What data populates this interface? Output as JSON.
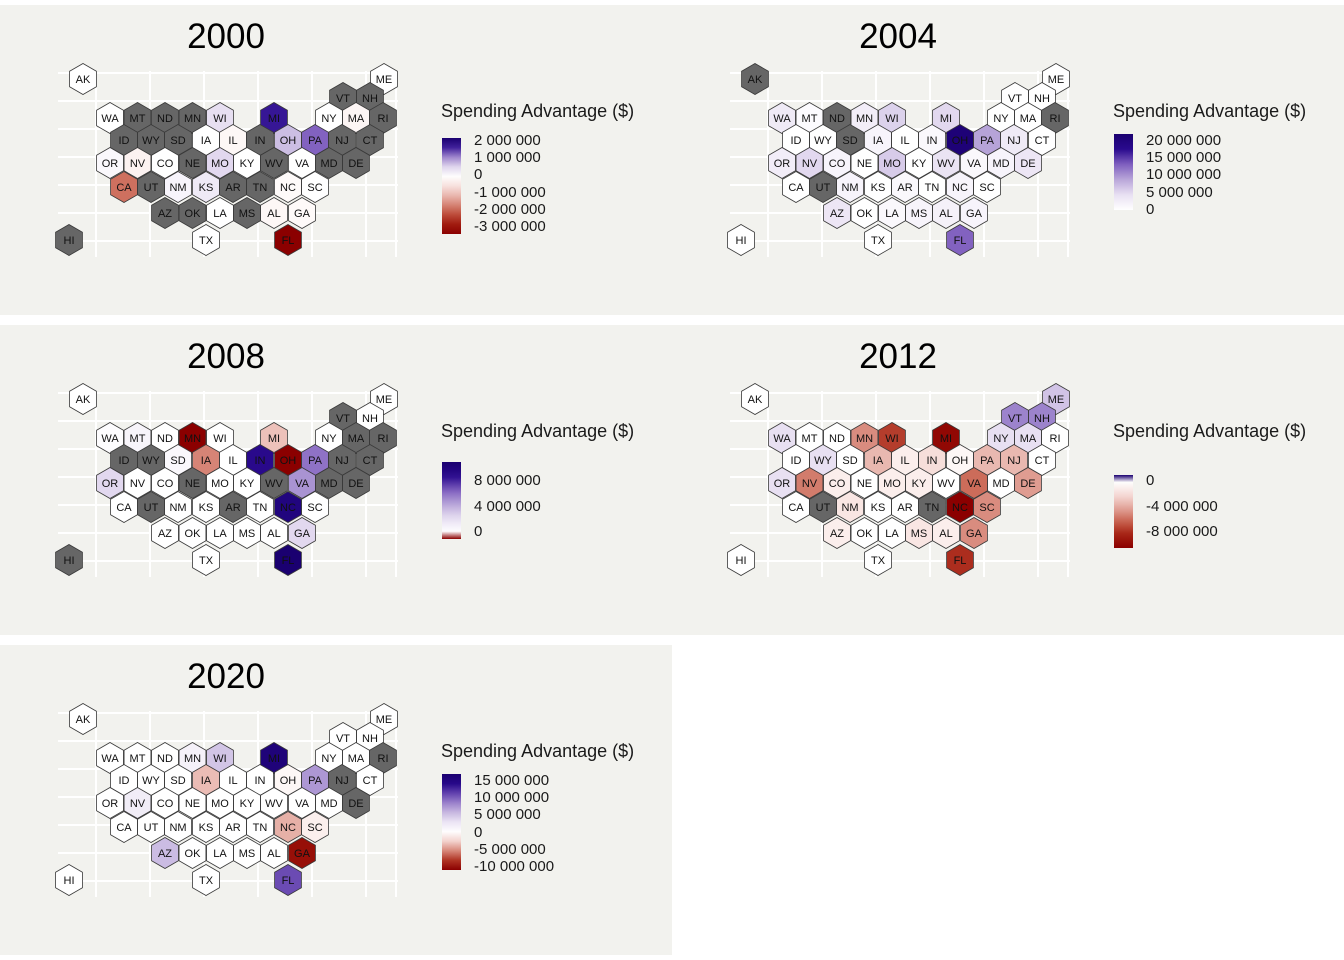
{
  "legend_title": "Spending Advantage ($)",
  "chart_data": [
    {
      "type": "heatmap",
      "title": "2000",
      "legend": {
        "title": "Spending Advantage ($)",
        "ticks": [
          {
            "value": 2000000,
            "label": "2 000 000"
          },
          {
            "value": 1000000,
            "label": "1 000 000"
          },
          {
            "value": 0,
            "label": "0"
          },
          {
            "value": -1000000,
            "label": "-1 000 000"
          },
          {
            "value": -2000000,
            "label": "-2 000 000"
          },
          {
            "value": -3000000,
            "label": "-3 000 000"
          }
        ],
        "range": [
          -3400000,
          2200000
        ]
      },
      "no_data_color": "#666666",
      "values": {
        "AK": 0,
        "ME": 0,
        "VT": null,
        "NH": null,
        "WA": 0,
        "MT": null,
        "ND": null,
        "MN": null,
        "WI": 450000,
        "MI": 1700000,
        "NY": 0,
        "MA": -200000,
        "RI": null,
        "ID": null,
        "WY": null,
        "SD": null,
        "IA": 0,
        "IL": -150000,
        "IN": null,
        "OH": 700000,
        "PA": 1300000,
        "NJ": null,
        "CT": null,
        "OR": 100000,
        "NV": -250000,
        "CO": 0,
        "NE": null,
        "MO": 500000,
        "KY": 0,
        "WV": null,
        "VA": 0,
        "MD": null,
        "DE": null,
        "CA": -1900000,
        "UT": null,
        "NM": 150000,
        "KS": 300000,
        "AR": null,
        "TN": null,
        "NC": -100000,
        "SC": 0,
        "AZ": null,
        "OK": null,
        "LA": 0,
        "MS": null,
        "AL": -150000,
        "GA": -100000,
        "HI": null,
        "TX": 0,
        "FL": -3400000
      }
    },
    {
      "type": "heatmap",
      "title": "2004",
      "legend": {
        "title": "Spending Advantage ($)",
        "ticks": [
          {
            "value": 20000000,
            "label": "20 000 000"
          },
          {
            "value": 15000000,
            "label": "15 000 000"
          },
          {
            "value": 10000000,
            "label": "10 000 000"
          },
          {
            "value": 5000000,
            "label": "5 000 000"
          },
          {
            "value": 0,
            "label": "0"
          }
        ],
        "range": [
          0,
          22000000
        ]
      },
      "no_data_color": "#666666",
      "values": {
        "AK": null,
        "ME": 0,
        "VT": 0,
        "NH": 0,
        "WA": 3000000,
        "MT": 500000,
        "ND": null,
        "MN": 2500000,
        "WI": 5500000,
        "MI": 5000000,
        "NY": 0,
        "MA": 0,
        "RI": null,
        "ID": 0,
        "WY": 0,
        "SD": null,
        "IA": 1500000,
        "IL": 0,
        "IN": 1000000,
        "OH": 21000000,
        "PA": 9000000,
        "NJ": 3000000,
        "CT": 0,
        "OR": 2500000,
        "NV": 5000000,
        "CO": 1500000,
        "NE": 0,
        "MO": 6000000,
        "KY": 0,
        "WV": 4000000,
        "VA": 1000000,
        "MD": 1500000,
        "DE": 3500000,
        "CA": 0,
        "UT": null,
        "NM": 1500000,
        "KS": 0,
        "AR": 1000000,
        "TN": 0,
        "NC": 1500000,
        "SC": 0,
        "AZ": 3500000,
        "OK": 0,
        "LA": 1000000,
        "MS": 1500000,
        "AL": 2000000,
        "GA": 1500000,
        "HI": 0,
        "TX": 0,
        "FL": 13000000
      }
    },
    {
      "type": "heatmap",
      "title": "2008",
      "legend": {
        "title": "Spending Advantage ($)",
        "ticks": [
          {
            "value": 8000000,
            "label": "8 000 000"
          },
          {
            "value": 4000000,
            "label": "4 000 000"
          },
          {
            "value": 0,
            "label": "0"
          }
        ],
        "range": [
          -1000000,
          11000000
        ]
      },
      "no_data_color": "#666666",
      "values": {
        "AK": 0,
        "ME": 0,
        "VT": null,
        "NH": 0,
        "WA": 200000,
        "MT": 800000,
        "ND": 0,
        "MN": -1000000,
        "WI": 0,
        "MI": -300000,
        "NY": 0,
        "MA": null,
        "RI": null,
        "ID": null,
        "WY": null,
        "SD": 500000,
        "IA": -500000,
        "IL": 0,
        "IN": 9000000,
        "OH": -1000000,
        "PA": 6000000,
        "NJ": null,
        "CT": null,
        "OR": 2500000,
        "NV": 0,
        "CO": 0,
        "NE": null,
        "MO": 0,
        "KY": 0,
        "WV": null,
        "VA": 5000000,
        "MD": null,
        "DE": null,
        "CA": 0,
        "UT": null,
        "NM": 0,
        "KS": 0,
        "AR": null,
        "TN": 0,
        "NC": 10000000,
        "SC": 0,
        "AZ": 0,
        "OK": 0,
        "LA": 0,
        "MS": 0,
        "AL": 0,
        "GA": 2500000,
        "HI": null,
        "TX": 0,
        "FL": 11000000
      }
    },
    {
      "type": "heatmap",
      "title": "2012",
      "legend": {
        "title": "Spending Advantage ($)",
        "ticks": [
          {
            "value": 0,
            "label": "0"
          },
          {
            "value": -4000000,
            "label": "-4 000 000"
          },
          {
            "value": -8000000,
            "label": "-8 000 000"
          }
        ],
        "range": [
          -10500000,
          1000000
        ]
      },
      "no_data_color": "#666666",
      "values": {
        "AK": 0,
        "ME": 300000,
        "VT": 500000,
        "NH": 500000,
        "WA": 200000,
        "MT": 0,
        "ND": 0,
        "MN": -5000000,
        "WI": -7500000,
        "MI": -10000000,
        "NY": 200000,
        "MA": 200000,
        "RI": 0,
        "ID": 0,
        "WY": 200000,
        "SD": 0,
        "IA": -3500000,
        "IL": -1000000,
        "IN": -2000000,
        "OH": -500000,
        "PA": -3500000,
        "NJ": -3500000,
        "CT": 0,
        "OR": 200000,
        "NV": -5500000,
        "CO": -1000000,
        "NE": 0,
        "MO": -1000000,
        "KY": -1000000,
        "WV": 0,
        "VA": -6000000,
        "MD": 0,
        "DE": -4500000,
        "CA": 0,
        "UT": null,
        "NM": -1500000,
        "KS": 0,
        "AR": 0,
        "TN": null,
        "NC": -10500000,
        "SC": -5000000,
        "AZ": -1000000,
        "OK": 0,
        "LA": 0,
        "MS": -1500000,
        "AL": -1000000,
        "GA": -5000000,
        "HI": 0,
        "TX": 0,
        "FL": -8000000
      }
    },
    {
      "type": "heatmap",
      "title": "2020",
      "legend": {
        "title": "Spending Advantage ($)",
        "ticks": [
          {
            "value": 15000000,
            "label": "15 000 000"
          },
          {
            "value": 10000000,
            "label": "10 000 000"
          },
          {
            "value": 5000000,
            "label": "5 000 000"
          },
          {
            "value": 0,
            "label": "0"
          },
          {
            "value": -5000000,
            "label": "-5 000 000"
          },
          {
            "value": -10000000,
            "label": "-10 000 000"
          }
        ],
        "range": [
          -11000000,
          17000000
        ]
      },
      "no_data_color": "#666666",
      "values": {
        "AK": 0,
        "ME": 0,
        "VT": 0,
        "NH": 0,
        "WA": 0,
        "MT": 0,
        "ND": 0,
        "MN": 1500000,
        "WI": 5000000,
        "MI": 16000000,
        "NY": 0,
        "MA": 0,
        "RI": null,
        "ID": 0,
        "WY": 0,
        "SD": 0,
        "IA": -3500000,
        "IL": 0,
        "IN": 0,
        "OH": -500000,
        "PA": 7500000,
        "NJ": null,
        "CT": 0,
        "OR": 0,
        "NV": 2000000,
        "CO": 0,
        "NE": 0,
        "MO": 0,
        "KY": 0,
        "WV": 0,
        "VA": 0,
        "MD": 0,
        "DE": null,
        "CA": 0,
        "UT": 0,
        "NM": 0,
        "KS": 0,
        "AR": 0,
        "TN": 0,
        "NC": -4000000,
        "SC": -1000000,
        "AZ": 5500000,
        "OK": 0,
        "LA": 0,
        "MS": 0,
        "AL": 0,
        "GA": -10000000,
        "HI": 0,
        "TX": 0,
        "FL": 11000000
      }
    }
  ]
}
